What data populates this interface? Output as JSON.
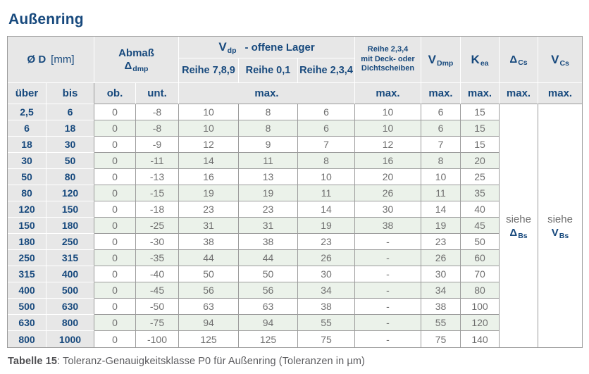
{
  "title": "Außenring",
  "caption": {
    "label": "Tabelle 15",
    "text": ": Toleranz-Genauigkeitsklasse P0 für Außenring (Toleranzen in µm)"
  },
  "colors": {
    "accent_navy": "#17497d",
    "header_gray": "#e7e7e7",
    "row_green": "#ebf2ea",
    "data_text": "#6f6f6f",
    "border_gray": "#9c9c9c"
  },
  "table": {
    "col_groups": {
      "diameter": {
        "main": "Ø D",
        "unit": "[mm]"
      },
      "abmass": {
        "line1": "Abmaß",
        "sym": "Δ",
        "sub": "dmp"
      },
      "vdp": {
        "sym": "V",
        "sub": "dp",
        "rest": "-  offene Lager"
      },
      "vdp_cols": [
        "Reihe 7,8,9",
        "Reihe 0,1",
        "Reihe 2,3,4"
      ],
      "sealed": [
        "Reihe 2,3,4",
        "mit Deck- oder",
        "Dichtscheiben"
      ],
      "vdmp": {
        "sym": "V",
        "sub": "Dmp"
      },
      "kea": {
        "sym": "K",
        "sub": "ea"
      },
      "dcs": {
        "sym": "Δ",
        "sub": "Cs"
      },
      "vcs": {
        "sym": "V",
        "sub": "Cs"
      }
    },
    "subheaders": {
      "uber": "über",
      "bis": "bis",
      "ob": "ob.",
      "unt": "unt.",
      "max": "max."
    },
    "see_refs": {
      "dcs": {
        "siehe": "siehe",
        "sym": "Δ",
        "sub": "Bs"
      },
      "vcs": {
        "siehe": "siehe",
        "sym": "V",
        "sub": "Bs"
      }
    },
    "rows": [
      {
        "uber": "2,5",
        "bis": "6",
        "ob": "0",
        "unt": "-8",
        "r789": "10",
        "r01": "8",
        "r234": "6",
        "sealed": "10",
        "vdmp": "6",
        "kea": "15"
      },
      {
        "uber": "6",
        "bis": "18",
        "ob": "0",
        "unt": "-8",
        "r789": "10",
        "r01": "8",
        "r234": "6",
        "sealed": "10",
        "vdmp": "6",
        "kea": "15"
      },
      {
        "uber": "18",
        "bis": "30",
        "ob": "0",
        "unt": "-9",
        "r789": "12",
        "r01": "9",
        "r234": "7",
        "sealed": "12",
        "vdmp": "7",
        "kea": "15"
      },
      {
        "uber": "30",
        "bis": "50",
        "ob": "0",
        "unt": "-11",
        "r789": "14",
        "r01": "11",
        "r234": "8",
        "sealed": "16",
        "vdmp": "8",
        "kea": "20"
      },
      {
        "uber": "50",
        "bis": "80",
        "ob": "0",
        "unt": "-13",
        "r789": "16",
        "r01": "13",
        "r234": "10",
        "sealed": "20",
        "vdmp": "10",
        "kea": "25"
      },
      {
        "uber": "80",
        "bis": "120",
        "ob": "0",
        "unt": "-15",
        "r789": "19",
        "r01": "19",
        "r234": "11",
        "sealed": "26",
        "vdmp": "11",
        "kea": "35"
      },
      {
        "uber": "120",
        "bis": "150",
        "ob": "0",
        "unt": "-18",
        "r789": "23",
        "r01": "23",
        "r234": "14",
        "sealed": "30",
        "vdmp": "14",
        "kea": "40"
      },
      {
        "uber": "150",
        "bis": "180",
        "ob": "0",
        "unt": "-25",
        "r789": "31",
        "r01": "31",
        "r234": "19",
        "sealed": "38",
        "vdmp": "19",
        "kea": "45"
      },
      {
        "uber": "180",
        "bis": "250",
        "ob": "0",
        "unt": "-30",
        "r789": "38",
        "r01": "38",
        "r234": "23",
        "sealed": "-",
        "vdmp": "23",
        "kea": "50"
      },
      {
        "uber": "250",
        "bis": "315",
        "ob": "0",
        "unt": "-35",
        "r789": "44",
        "r01": "44",
        "r234": "26",
        "sealed": "-",
        "vdmp": "26",
        "kea": "60"
      },
      {
        "uber": "315",
        "bis": "400",
        "ob": "0",
        "unt": "-40",
        "r789": "50",
        "r01": "50",
        "r234": "30",
        "sealed": "-",
        "vdmp": "30",
        "kea": "70"
      },
      {
        "uber": "400",
        "bis": "500",
        "ob": "0",
        "unt": "-45",
        "r789": "56",
        "r01": "56",
        "r234": "34",
        "sealed": "-",
        "vdmp": "34",
        "kea": "80"
      },
      {
        "uber": "500",
        "bis": "630",
        "ob": "0",
        "unt": "-50",
        "r789": "63",
        "r01": "63",
        "r234": "38",
        "sealed": "-",
        "vdmp": "38",
        "kea": "100"
      },
      {
        "uber": "630",
        "bis": "800",
        "ob": "0",
        "unt": "-75",
        "r789": "94",
        "r01": "94",
        "r234": "55",
        "sealed": "-",
        "vdmp": "55",
        "kea": "120"
      },
      {
        "uber": "800",
        "bis": "1000",
        "ob": "0",
        "unt": "-100",
        "r789": "125",
        "r01": "125",
        "r234": "75",
        "sealed": "-",
        "vdmp": "75",
        "kea": "140"
      }
    ]
  }
}
